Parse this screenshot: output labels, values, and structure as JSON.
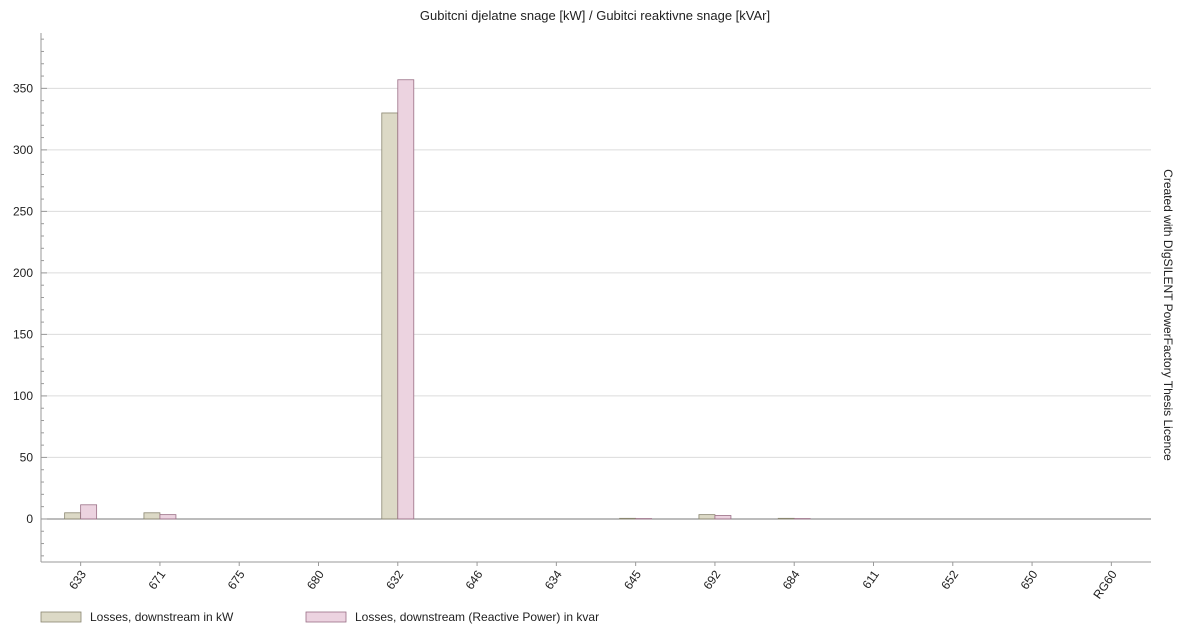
{
  "chart_data": {
    "type": "bar",
    "title": "Gubitcni djelatne snage [kW] / Gubitci reaktivne snage [kVAr]",
    "xlabel": "",
    "ylabel": "",
    "categories": [
      "633",
      "671",
      "675",
      "680",
      "632",
      "646",
      "634",
      "645",
      "692",
      "684",
      "611",
      "652",
      "650",
      "RG60"
    ],
    "series": [
      {
        "name": "Losses, downstream in kW",
        "color": "#dcd9c6",
        "stroke": "#8a8670",
        "values": [
          5,
          5,
          0,
          0,
          330,
          0,
          0,
          0.5,
          3.5,
          0.5,
          0,
          0,
          0,
          0
        ]
      },
      {
        "name": "Losses, downstream (Reactive Power) in kvar",
        "color": "#ecd3e0",
        "stroke": "#9a6f86",
        "values": [
          11.5,
          3.5,
          0,
          0,
          357,
          0,
          0,
          0.3,
          2.8,
          0.3,
          0,
          0,
          0,
          0
        ]
      }
    ],
    "ylim": [
      -35,
      395
    ],
    "yticks": [
      0,
      50,
      100,
      150,
      200,
      250,
      300,
      350
    ],
    "grid": true,
    "legend_position": "bottom-left"
  },
  "watermark": "Created with DIgSILENT PowerFactory Thesis Licence"
}
